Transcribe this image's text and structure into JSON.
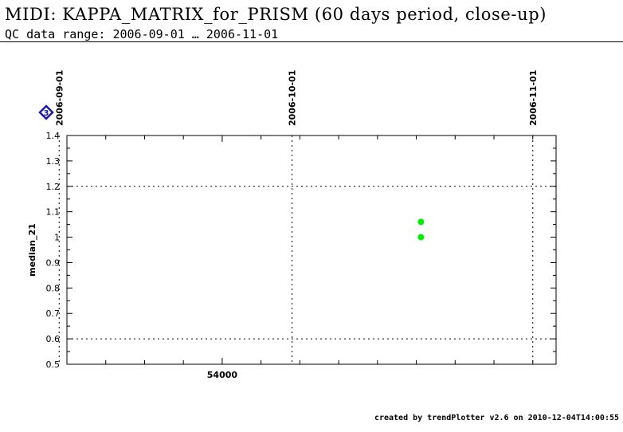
{
  "header": {
    "title": "MIDI: KAPPA_MATRIX_for_PRISM (60 days period, close-up)",
    "subtitle": "QC data range: 2006-09-01 … 2006-11-01"
  },
  "footer": {
    "credit": "created by trendPlotter v2.6 on 2010-12-04T14:00:55"
  },
  "marker": {
    "label": "3",
    "color": "#1a1aa8"
  },
  "colors": {
    "points": "#00ee00",
    "axes": "#000000"
  },
  "chart_data": {
    "type": "scatter",
    "ylabel": "median_21",
    "xlabel": "",
    "ylim": [
      0.5,
      1.4
    ],
    "yticks": [
      "0.5",
      "0.6",
      "0.7",
      "0.8",
      "0.9",
      "1",
      "1.1",
      "1.2",
      "1.3",
      "1.4"
    ],
    "xlim": [
      53980.0,
      54043.0
    ],
    "xticks": [
      {
        "value": 54000,
        "label": "54000"
      }
    ],
    "date_lines": [
      {
        "mjd": 53979.0,
        "label": "2006-09-01"
      },
      {
        "mjd": 54009.0,
        "label": "2006-10-01"
      },
      {
        "mjd": 54040.0,
        "label": "2006-11-01"
      }
    ],
    "reference_lines_y": [
      0.6,
      1.2
    ],
    "grid": false,
    "points": [
      {
        "x": 54025.6,
        "y": 1.06
      },
      {
        "x": 54025.6,
        "y": 1.0
      }
    ]
  }
}
